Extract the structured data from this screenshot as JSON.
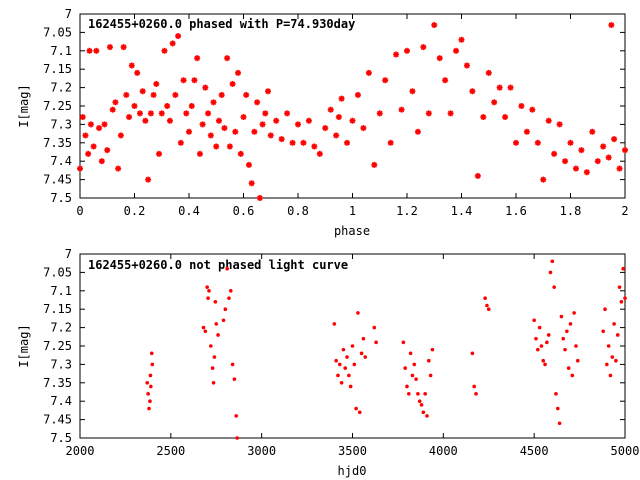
{
  "chart_data": [
    {
      "type": "scatter",
      "title": "162455+0260.0 phased with P=74.930day",
      "xlabel": "phase",
      "ylabel": "I[mag]",
      "xlim": [
        0,
        2
      ],
      "ylim": [
        7.5,
        7.0
      ],
      "y_inverted": true,
      "grid": false,
      "xticks": [
        "0",
        "0.2",
        "0.4",
        "0.6",
        "0.8",
        "1",
        "1.2",
        "1.4",
        "1.6",
        "1.8",
        "2"
      ],
      "yticks": [
        "7",
        "7.05",
        "7.1",
        "7.15",
        "7.2",
        "7.25",
        "7.3",
        "7.35",
        "7.4",
        "7.45",
        "7.5"
      ],
      "marker_color": "#ff0000",
      "marker": "asterisk",
      "points": [
        [
          0.0,
          7.42
        ],
        [
          0.01,
          7.28
        ],
        [
          0.02,
          7.33
        ],
        [
          0.03,
          7.38
        ],
        [
          0.035,
          7.1
        ],
        [
          0.04,
          7.3
        ],
        [
          0.05,
          7.36
        ],
        [
          0.06,
          7.1
        ],
        [
          0.07,
          7.31
        ],
        [
          0.08,
          7.4
        ],
        [
          0.09,
          7.3
        ],
        [
          0.1,
          7.37
        ],
        [
          0.11,
          7.09
        ],
        [
          0.12,
          7.26
        ],
        [
          0.13,
          7.24
        ],
        [
          0.14,
          7.42
        ],
        [
          0.15,
          7.33
        ],
        [
          0.16,
          7.09
        ],
        [
          0.17,
          7.22
        ],
        [
          0.18,
          7.28
        ],
        [
          0.19,
          7.14
        ],
        [
          0.2,
          7.25
        ],
        [
          0.21,
          7.16
        ],
        [
          0.22,
          7.27
        ],
        [
          0.23,
          7.21
        ],
        [
          0.24,
          7.29
        ],
        [
          0.25,
          7.45
        ],
        [
          0.26,
          7.27
        ],
        [
          0.27,
          7.22
        ],
        [
          0.28,
          7.19
        ],
        [
          0.29,
          7.38
        ],
        [
          0.3,
          7.27
        ],
        [
          0.31,
          7.1
        ],
        [
          0.32,
          7.25
        ],
        [
          0.33,
          7.29
        ],
        [
          0.34,
          7.08
        ],
        [
          0.35,
          7.22
        ],
        [
          0.36,
          7.06
        ],
        [
          0.37,
          7.35
        ],
        [
          0.38,
          7.18
        ],
        [
          0.39,
          7.27
        ],
        [
          0.4,
          7.32
        ],
        [
          0.41,
          7.25
        ],
        [
          0.42,
          7.18
        ],
        [
          0.43,
          7.12
        ],
        [
          0.44,
          7.38
        ],
        [
          0.45,
          7.3
        ],
        [
          0.46,
          7.2
        ],
        [
          0.47,
          7.27
        ],
        [
          0.48,
          7.33
        ],
        [
          0.49,
          7.24
        ],
        [
          0.5,
          7.36
        ],
        [
          0.51,
          7.29
        ],
        [
          0.52,
          7.22
        ],
        [
          0.53,
          7.31
        ],
        [
          0.54,
          7.12
        ],
        [
          0.55,
          7.36
        ],
        [
          0.56,
          7.19
        ],
        [
          0.57,
          7.32
        ],
        [
          0.58,
          7.16
        ],
        [
          0.59,
          7.38
        ],
        [
          0.6,
          7.28
        ],
        [
          0.61,
          7.22
        ],
        [
          0.62,
          7.41
        ],
        [
          0.63,
          7.46
        ],
        [
          0.64,
          7.32
        ],
        [
          0.65,
          7.24
        ],
        [
          0.66,
          7.5
        ],
        [
          0.67,
          7.3
        ],
        [
          0.68,
          7.27
        ],
        [
          0.69,
          7.21
        ],
        [
          0.7,
          7.33
        ],
        [
          0.72,
          7.29
        ],
        [
          0.74,
          7.34
        ],
        [
          0.76,
          7.27
        ],
        [
          0.78,
          7.35
        ],
        [
          0.8,
          7.3
        ],
        [
          0.82,
          7.35
        ],
        [
          0.84,
          7.29
        ],
        [
          0.86,
          7.36
        ],
        [
          0.88,
          7.38
        ],
        [
          0.9,
          7.31
        ],
        [
          0.92,
          7.26
        ],
        [
          0.94,
          7.33
        ],
        [
          0.95,
          7.28
        ],
        [
          0.96,
          7.23
        ],
        [
          0.98,
          7.35
        ],
        [
          1.0,
          7.29
        ],
        [
          1.02,
          7.22
        ],
        [
          1.04,
          7.31
        ],
        [
          1.06,
          7.16
        ],
        [
          1.08,
          7.41
        ],
        [
          1.1,
          7.27
        ],
        [
          1.12,
          7.18
        ],
        [
          1.14,
          7.35
        ],
        [
          1.16,
          7.11
        ],
        [
          1.18,
          7.26
        ],
        [
          1.2,
          7.1
        ],
        [
          1.22,
          7.21
        ],
        [
          1.24,
          7.32
        ],
        [
          1.26,
          7.09
        ],
        [
          1.28,
          7.27
        ],
        [
          1.3,
          7.03
        ],
        [
          1.32,
          7.12
        ],
        [
          1.34,
          7.18
        ],
        [
          1.36,
          7.27
        ],
        [
          1.38,
          7.1
        ],
        [
          1.4,
          7.07
        ],
        [
          1.42,
          7.14
        ],
        [
          1.44,
          7.21
        ],
        [
          1.46,
          7.44
        ],
        [
          1.48,
          7.28
        ],
        [
          1.5,
          7.16
        ],
        [
          1.52,
          7.24
        ],
        [
          1.54,
          7.2
        ],
        [
          1.56,
          7.28
        ],
        [
          1.58,
          7.2
        ],
        [
          1.6,
          7.35
        ],
        [
          1.62,
          7.25
        ],
        [
          1.64,
          7.32
        ],
        [
          1.66,
          7.26
        ],
        [
          1.68,
          7.35
        ],
        [
          1.7,
          7.45
        ],
        [
          1.72,
          7.29
        ],
        [
          1.74,
          7.38
        ],
        [
          1.76,
          7.3
        ],
        [
          1.78,
          7.4
        ],
        [
          1.8,
          7.35
        ],
        [
          1.82,
          7.42
        ],
        [
          1.84,
          7.37
        ],
        [
          1.86,
          7.43
        ],
        [
          1.88,
          7.32
        ],
        [
          1.9,
          7.4
        ],
        [
          1.92,
          7.36
        ],
        [
          1.94,
          7.39
        ],
        [
          1.95,
          7.03
        ],
        [
          1.96,
          7.34
        ],
        [
          1.98,
          7.42
        ],
        [
          2.0,
          7.37
        ]
      ]
    },
    {
      "type": "scatter",
      "title": "162455+0260.0 not phased light curve",
      "xlabel": "hjd0",
      "ylabel": "I[mag]",
      "xlim": [
        2000,
        5000
      ],
      "ylim": [
        7.5,
        7.0
      ],
      "y_inverted": true,
      "grid": false,
      "xticks": [
        "2000",
        "2500",
        "3000",
        "3500",
        "4000",
        "4500",
        "5000"
      ],
      "yticks": [
        "7",
        "7.05",
        "7.1",
        "7.15",
        "7.2",
        "7.25",
        "7.3",
        "7.35",
        "7.4",
        "7.45",
        "7.5"
      ],
      "marker_color": "#ff0000",
      "marker": "dot",
      "points": [
        [
          2370,
          7.35
        ],
        [
          2375,
          7.38
        ],
        [
          2380,
          7.42
        ],
        [
          2385,
          7.4
        ],
        [
          2388,
          7.33
        ],
        [
          2390,
          7.36
        ],
        [
          2395,
          7.27
        ],
        [
          2398,
          7.3
        ],
        [
          2680,
          7.2
        ],
        [
          2690,
          7.21
        ],
        [
          2700,
          7.09
        ],
        [
          2705,
          7.12
        ],
        [
          2710,
          7.1
        ],
        [
          2720,
          7.25
        ],
        [
          2730,
          7.31
        ],
        [
          2735,
          7.35
        ],
        [
          2740,
          7.28
        ],
        [
          2745,
          7.13
        ],
        [
          2750,
          7.19
        ],
        [
          2760,
          7.22
        ],
        [
          2790,
          7.18
        ],
        [
          2800,
          7.15
        ],
        [
          2810,
          7.04
        ],
        [
          2820,
          7.12
        ],
        [
          2830,
          7.1
        ],
        [
          2840,
          7.3
        ],
        [
          2850,
          7.34
        ],
        [
          2860,
          7.44
        ],
        [
          2865,
          7.5
        ],
        [
          3400,
          7.19
        ],
        [
          3410,
          7.29
        ],
        [
          3420,
          7.33
        ],
        [
          3430,
          7.3
        ],
        [
          3440,
          7.35
        ],
        [
          3450,
          7.26
        ],
        [
          3460,
          7.31
        ],
        [
          3470,
          7.28
        ],
        [
          3480,
          7.33
        ],
        [
          3490,
          7.36
        ],
        [
          3500,
          7.25
        ],
        [
          3510,
          7.3
        ],
        [
          3520,
          7.42
        ],
        [
          3530,
          7.16
        ],
        [
          3540,
          7.43
        ],
        [
          3550,
          7.27
        ],
        [
          3560,
          7.23
        ],
        [
          3570,
          7.28
        ],
        [
          3620,
          7.2
        ],
        [
          3630,
          7.24
        ],
        [
          3780,
          7.24
        ],
        [
          3790,
          7.31
        ],
        [
          3800,
          7.36
        ],
        [
          3810,
          7.38
        ],
        [
          3820,
          7.27
        ],
        [
          3830,
          7.33
        ],
        [
          3840,
          7.3
        ],
        [
          3850,
          7.34
        ],
        [
          3860,
          7.38
        ],
        [
          3870,
          7.4
        ],
        [
          3880,
          7.41
        ],
        [
          3890,
          7.43
        ],
        [
          3900,
          7.38
        ],
        [
          3910,
          7.44
        ],
        [
          3920,
          7.29
        ],
        [
          3930,
          7.33
        ],
        [
          3940,
          7.26
        ],
        [
          4160,
          7.27
        ],
        [
          4170,
          7.36
        ],
        [
          4180,
          7.38
        ],
        [
          4230,
          7.12
        ],
        [
          4240,
          7.14
        ],
        [
          4250,
          7.15
        ],
        [
          4500,
          7.18
        ],
        [
          4510,
          7.23
        ],
        [
          4520,
          7.26
        ],
        [
          4530,
          7.2
        ],
        [
          4540,
          7.25
        ],
        [
          4550,
          7.29
        ],
        [
          4560,
          7.3
        ],
        [
          4570,
          7.24
        ],
        [
          4580,
          7.22
        ],
        [
          4590,
          7.05
        ],
        [
          4600,
          7.02
        ],
        [
          4610,
          7.09
        ],
        [
          4620,
          7.38
        ],
        [
          4630,
          7.42
        ],
        [
          4640,
          7.46
        ],
        [
          4650,
          7.17
        ],
        [
          4660,
          7.23
        ],
        [
          4670,
          7.26
        ],
        [
          4680,
          7.21
        ],
        [
          4690,
          7.31
        ],
        [
          4700,
          7.19
        ],
        [
          4710,
          7.33
        ],
        [
          4720,
          7.16
        ],
        [
          4730,
          7.25
        ],
        [
          4740,
          7.29
        ],
        [
          4880,
          7.21
        ],
        [
          4890,
          7.15
        ],
        [
          4900,
          7.3
        ],
        [
          4910,
          7.25
        ],
        [
          4920,
          7.33
        ],
        [
          4930,
          7.28
        ],
        [
          4940,
          7.19
        ],
        [
          4950,
          7.29
        ],
        [
          4960,
          7.22
        ],
        [
          4970,
          7.09
        ],
        [
          4980,
          7.13
        ],
        [
          4990,
          7.04
        ],
        [
          5000,
          7.12
        ]
      ]
    }
  ]
}
